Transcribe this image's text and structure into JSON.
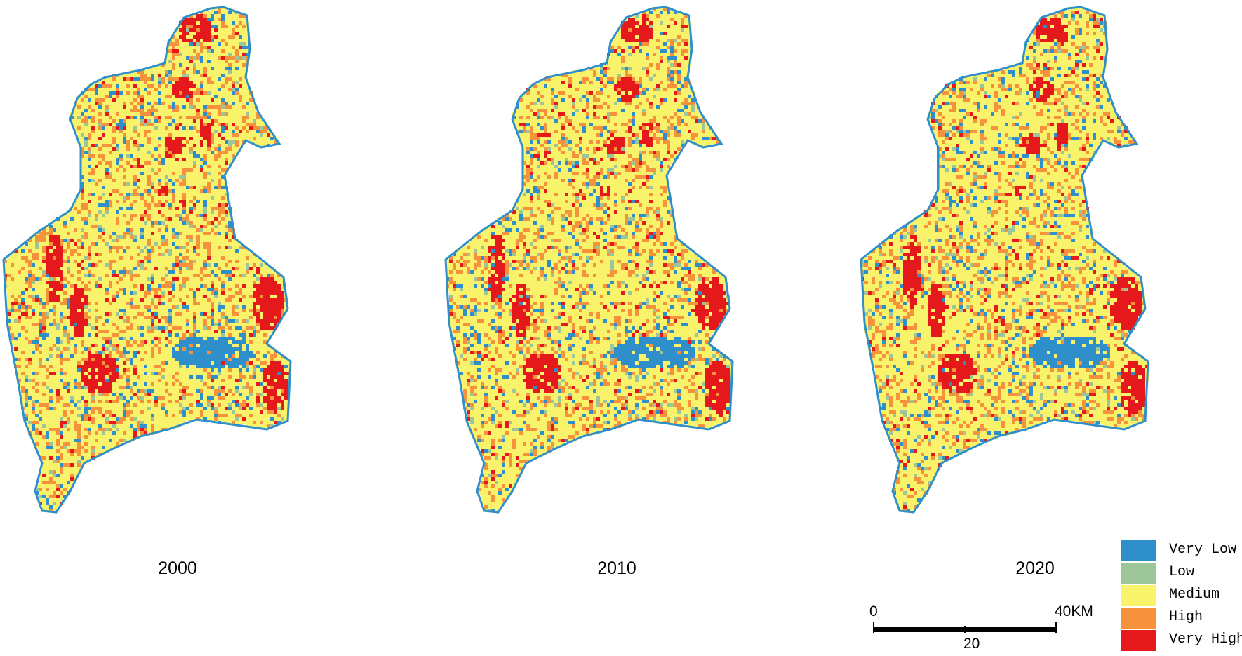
{
  "maps": [
    {
      "year": "2000",
      "variant": 0
    },
    {
      "year": "2010",
      "variant": 1
    },
    {
      "year": "2020",
      "variant": 2
    }
  ],
  "legend": {
    "items": [
      {
        "label": "Very Low",
        "color": "#2e8fcb"
      },
      {
        "label": "Low",
        "color": "#9cc59a"
      },
      {
        "label": "Medium",
        "color": "#f8f36b"
      },
      {
        "label": "High",
        "color": "#f5923b"
      },
      {
        "label": "Very High",
        "color": "#e5181b"
      }
    ]
  },
  "scalebar": {
    "start": "0",
    "mid": "20",
    "end": "40KM"
  },
  "colors": {
    "outline": "#2e8fcb",
    "medium": "#f8f36b",
    "high": "#f5923b",
    "very_high": "#e5181b",
    "very_low": "#2e8fcb",
    "low": "#9cc59a"
  }
}
